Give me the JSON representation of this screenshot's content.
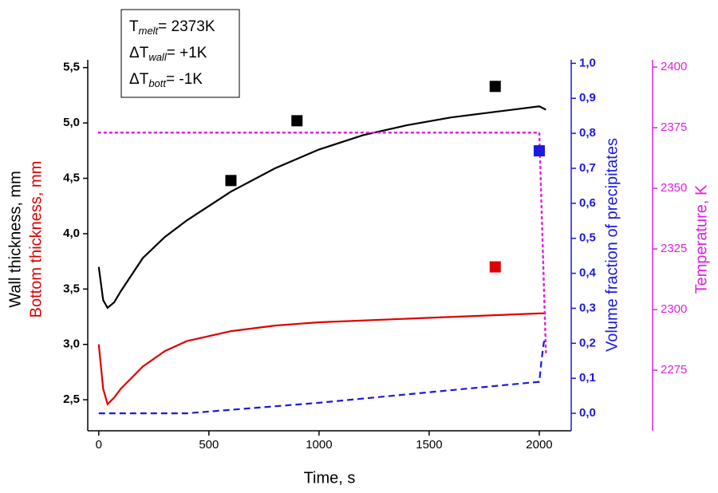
{
  "chart_data": {
    "type": "line",
    "xlabel": "Time,  s",
    "ylabels": [
      {
        "text": "Wall thickness,  mm",
        "color": "#000000"
      },
      {
        "text": "Bottom thickness,  mm",
        "color": "#e00000"
      }
    ],
    "y2label": "Volume fraction of precipitates",
    "y3label": "Temperature,  K",
    "xlim": [
      -50,
      2145
    ],
    "xticks": [
      0,
      500,
      1000,
      1500,
      2000
    ],
    "ylim": [
      2.22,
      5.57
    ],
    "yticks": [
      {
        "value": 2.5,
        "label": "2,5"
      },
      {
        "value": 3.0,
        "label": "3,0"
      },
      {
        "value": 3.5,
        "label": "3,5"
      },
      {
        "value": 4.0,
        "label": "4,0"
      },
      {
        "value": 4.5,
        "label": "4,5"
      },
      {
        "value": 5.0,
        "label": "5,0"
      },
      {
        "value": 5.5,
        "label": "5,5"
      }
    ],
    "y2lim": [
      -0.05,
      1.01
    ],
    "y2ticks": [
      {
        "value": 0.0,
        "label": "0,0"
      },
      {
        "value": 0.1,
        "label": "0,1"
      },
      {
        "value": 0.2,
        "label": "0,2"
      },
      {
        "value": 0.3,
        "label": "0,3"
      },
      {
        "value": 0.4,
        "label": "0,4"
      },
      {
        "value": 0.5,
        "label": "0,5"
      },
      {
        "value": 0.6,
        "label": "0,6"
      },
      {
        "value": 0.7,
        "label": "0,7"
      },
      {
        "value": 0.8,
        "label": "0,8"
      },
      {
        "value": 0.9,
        "label": "0,9"
      },
      {
        "value": 1.0,
        "label": "1,0"
      }
    ],
    "y2color": "#1a1adc",
    "y3lim": [
      2250,
      2403
    ],
    "y3ticks": [
      2275,
      2300,
      2325,
      2350,
      2375,
      2400
    ],
    "y3color": "#e020e0",
    "annotation": [
      {
        "symbol": "T",
        "sub": "melt",
        "text": "= 2373K"
      },
      {
        "symbol": "ΔT",
        "sub": "wall",
        "text": "= +1K"
      },
      {
        "symbol": "ΔT",
        "sub": "bott",
        "text": "= -1K"
      }
    ],
    "series": [
      {
        "color": "#000000",
        "axis": "y",
        "style": "solid",
        "x": [
          0,
          20,
          40,
          70,
          100,
          200,
          300,
          400,
          600,
          800,
          1000,
          1200,
          1400,
          1600,
          1800,
          2000,
          2030
        ],
        "values": [
          3.7,
          3.4,
          3.33,
          3.38,
          3.48,
          3.78,
          3.97,
          4.12,
          4.38,
          4.59,
          4.76,
          4.89,
          4.98,
          5.05,
          5.1,
          5.15,
          5.12
        ]
      },
      {
        "color": "#e00000",
        "axis": "y",
        "style": "solid",
        "x": [
          0,
          20,
          40,
          70,
          100,
          200,
          300,
          400,
          600,
          800,
          1000,
          1500,
          2000,
          2030
        ],
        "values": [
          3.0,
          2.6,
          2.46,
          2.52,
          2.6,
          2.8,
          2.94,
          3.03,
          3.12,
          3.17,
          3.2,
          3.24,
          3.28,
          3.28
        ]
      },
      {
        "color": "#1a1adc",
        "axis": "y2",
        "style": "dashed",
        "x": [
          0,
          400,
          600,
          1000,
          1500,
          2000,
          2010,
          2020,
          2030
        ],
        "values": [
          0.0,
          0.0,
          0.01,
          0.03,
          0.06,
          0.09,
          0.15,
          0.2,
          0.22
        ]
      },
      {
        "color": "#e020e0",
        "axis": "y3",
        "style": "dotted",
        "x": [
          0,
          2000,
          2030
        ],
        "values": [
          2373,
          2373,
          2282
        ]
      }
    ],
    "points": [
      {
        "color": "#000000",
        "axis": "y",
        "x": [
          600,
          900,
          1800
        ],
        "values": [
          4.48,
          5.02,
          5.33
        ]
      },
      {
        "color": "#e00000",
        "axis": "y",
        "x": [
          1800
        ],
        "values": [
          3.7
        ]
      },
      {
        "color": "#1a1adc",
        "axis": "y2",
        "x": [
          2000
        ],
        "values": [
          0.75
        ]
      }
    ]
  }
}
